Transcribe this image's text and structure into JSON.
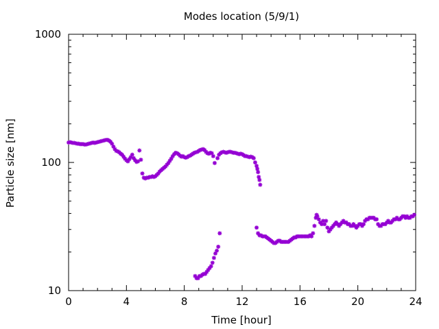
{
  "chart_data": {
    "type": "scatter",
    "title": "Modes location (5/9/1)",
    "xlabel": "Time [hour]",
    "ylabel": "Particle size [nm]",
    "xlim": [
      0,
      24
    ],
    "ylim": [
      10,
      1000
    ],
    "yscale": "log",
    "grid": false,
    "legend": "none",
    "xticks": [
      0,
      4,
      8,
      12,
      16,
      20,
      24
    ],
    "xtick_labels": [
      "0",
      "4",
      "8",
      "12",
      "16",
      "20",
      "24"
    ],
    "yticks": [
      10,
      100,
      1000
    ],
    "ytick_labels": [
      "10",
      "100",
      "1000"
    ],
    "marker_color": "#9400d3",
    "series": [
      {
        "points": [
          [
            0.0,
            143
          ],
          [
            0.1,
            144
          ],
          [
            0.2,
            143
          ],
          [
            0.3,
            142
          ],
          [
            0.4,
            142
          ],
          [
            0.5,
            141
          ],
          [
            0.6,
            140
          ],
          [
            0.7,
            140
          ],
          [
            0.8,
            139
          ],
          [
            0.9,
            139
          ],
          [
            1.0,
            139
          ],
          [
            1.1,
            138
          ],
          [
            1.2,
            138
          ],
          [
            1.3,
            139
          ],
          [
            1.4,
            140
          ],
          [
            1.5,
            141
          ],
          [
            1.6,
            142
          ],
          [
            1.7,
            143
          ],
          [
            1.8,
            142
          ],
          [
            1.9,
            143
          ],
          [
            2.0,
            144
          ],
          [
            2.1,
            145
          ],
          [
            2.2,
            146
          ],
          [
            2.3,
            147
          ],
          [
            2.4,
            148
          ],
          [
            2.5,
            149
          ],
          [
            2.6,
            150
          ],
          [
            2.7,
            150
          ],
          [
            2.8,
            148
          ],
          [
            2.9,
            145
          ],
          [
            3.0,
            140
          ],
          [
            3.1,
            133
          ],
          [
            3.2,
            127
          ],
          [
            3.3,
            123
          ],
          [
            3.4,
            122
          ],
          [
            3.5,
            120
          ],
          [
            3.6,
            117
          ],
          [
            3.7,
            115
          ],
          [
            3.8,
            111
          ],
          [
            3.9,
            107
          ],
          [
            4.0,
            104
          ],
          [
            4.1,
            102
          ],
          [
            4.2,
            106
          ],
          [
            4.3,
            110
          ],
          [
            4.4,
            115
          ],
          [
            4.5,
            108
          ],
          [
            4.6,
            104
          ],
          [
            4.7,
            101
          ],
          [
            4.8,
            102
          ],
          [
            4.9,
            124
          ],
          [
            5.0,
            105
          ],
          [
            5.1,
            82
          ],
          [
            5.2,
            76
          ],
          [
            5.3,
            75
          ],
          [
            5.4,
            76
          ],
          [
            5.5,
            76
          ],
          [
            5.6,
            77
          ],
          [
            5.7,
            77
          ],
          [
            5.8,
            78
          ],
          [
            5.9,
            77
          ],
          [
            6.0,
            78
          ],
          [
            6.1,
            80
          ],
          [
            6.2,
            82
          ],
          [
            6.3,
            85
          ],
          [
            6.4,
            87
          ],
          [
            6.5,
            89
          ],
          [
            6.6,
            91
          ],
          [
            6.7,
            93
          ],
          [
            6.8,
            96
          ],
          [
            6.9,
            99
          ],
          [
            7.0,
            103
          ],
          [
            7.1,
            107
          ],
          [
            7.2,
            112
          ],
          [
            7.3,
            116
          ],
          [
            7.4,
            119
          ],
          [
            7.5,
            118
          ],
          [
            7.6,
            116
          ],
          [
            7.7,
            113
          ],
          [
            7.8,
            111
          ],
          [
            7.9,
            112
          ],
          [
            8.0,
            110
          ],
          [
            8.1,
            109
          ],
          [
            8.2,
            110
          ],
          [
            8.3,
            112
          ],
          [
            8.4,
            113
          ],
          [
            8.5,
            115
          ],
          [
            8.6,
            117
          ],
          [
            8.7,
            119
          ],
          [
            8.8,
            120
          ],
          [
            8.9,
            121
          ],
          [
            9.0,
            123
          ],
          [
            9.1,
            125
          ],
          [
            9.2,
            126
          ],
          [
            9.3,
            127
          ],
          [
            9.4,
            125
          ],
          [
            9.5,
            121
          ],
          [
            9.6,
            118
          ],
          [
            9.7,
            117
          ],
          [
            9.8,
            119
          ],
          [
            9.9,
            118
          ],
          [
            10.0,
            112
          ],
          [
            10.1,
            99
          ],
          [
            10.3,
            108
          ],
          [
            10.4,
            115
          ],
          [
            10.5,
            118
          ],
          [
            10.6,
            120
          ],
          [
            10.7,
            121
          ],
          [
            10.8,
            120
          ],
          [
            10.9,
            119
          ],
          [
            11.0,
            120
          ],
          [
            11.1,
            121
          ],
          [
            11.2,
            121
          ],
          [
            11.3,
            120
          ],
          [
            11.4,
            119
          ],
          [
            11.5,
            119
          ],
          [
            11.6,
            118
          ],
          [
            11.7,
            117
          ],
          [
            11.8,
            116
          ],
          [
            11.9,
            117
          ],
          [
            12.0,
            116
          ],
          [
            12.1,
            114
          ],
          [
            12.2,
            112
          ],
          [
            12.3,
            112
          ],
          [
            12.4,
            111
          ],
          [
            12.5,
            110
          ],
          [
            12.6,
            111
          ],
          [
            12.7,
            110
          ],
          [
            12.8,
            108
          ],
          [
            12.9,
            100
          ],
          [
            13.0,
            94
          ],
          [
            13.05,
            89
          ],
          [
            13.1,
            84
          ],
          [
            13.15,
            77
          ],
          [
            13.2,
            73
          ],
          [
            13.25,
            67
          ],
          [
            13.0,
            31
          ],
          [
            13.1,
            28
          ],
          [
            13.2,
            27
          ],
          [
            13.3,
            27
          ],
          [
            13.4,
            26.5
          ],
          [
            13.5,
            26.5
          ],
          [
            13.6,
            26.5
          ],
          [
            13.7,
            26
          ],
          [
            13.8,
            25.5
          ],
          [
            13.9,
            25
          ],
          [
            14.0,
            24.5
          ],
          [
            14.1,
            24
          ],
          [
            14.2,
            23.5
          ],
          [
            14.3,
            23.5
          ],
          [
            14.4,
            24
          ],
          [
            14.5,
            24.5
          ],
          [
            14.6,
            24.5
          ],
          [
            14.7,
            24
          ],
          [
            14.8,
            24
          ],
          [
            14.9,
            24
          ],
          [
            15.0,
            24
          ],
          [
            15.1,
            24
          ],
          [
            15.2,
            24
          ],
          [
            15.3,
            24.5
          ],
          [
            15.4,
            25
          ],
          [
            15.5,
            25.5
          ],
          [
            15.6,
            26
          ],
          [
            15.7,
            26
          ],
          [
            15.8,
            26.5
          ],
          [
            15.9,
            26.5
          ],
          [
            16.0,
            26.5
          ],
          [
            16.1,
            26.5
          ],
          [
            16.2,
            26.5
          ],
          [
            16.3,
            26.5
          ],
          [
            16.4,
            26.5
          ],
          [
            16.5,
            26.5
          ],
          [
            16.6,
            26.5
          ],
          [
            16.7,
            27
          ],
          [
            16.8,
            26.5
          ],
          [
            16.9,
            28
          ],
          [
            17.0,
            32
          ],
          [
            17.1,
            37
          ],
          [
            17.15,
            39
          ],
          [
            17.2,
            38
          ],
          [
            17.3,
            36
          ],
          [
            17.4,
            34
          ],
          [
            17.5,
            33
          ],
          [
            17.6,
            35
          ],
          [
            17.7,
            33
          ],
          [
            17.8,
            35
          ],
          [
            17.9,
            31
          ],
          [
            18.0,
            29
          ],
          [
            18.1,
            30
          ],
          [
            18.2,
            31
          ],
          [
            18.3,
            32
          ],
          [
            18.4,
            33
          ],
          [
            18.5,
            34
          ],
          [
            18.6,
            33
          ],
          [
            18.7,
            32
          ],
          [
            18.8,
            33
          ],
          [
            18.9,
            34
          ],
          [
            19.0,
            35
          ],
          [
            19.1,
            34
          ],
          [
            19.2,
            34
          ],
          [
            19.3,
            33
          ],
          [
            19.4,
            33
          ],
          [
            19.5,
            32
          ],
          [
            19.6,
            32
          ],
          [
            19.7,
            33
          ],
          [
            19.8,
            32
          ],
          [
            19.9,
            31
          ],
          [
            20.0,
            32
          ],
          [
            20.1,
            33
          ],
          [
            20.2,
            33
          ],
          [
            20.3,
            32
          ],
          [
            20.4,
            33
          ],
          [
            20.5,
            35
          ],
          [
            20.6,
            36
          ],
          [
            20.7,
            36
          ],
          [
            20.8,
            37
          ],
          [
            20.9,
            37
          ],
          [
            21.0,
            37
          ],
          [
            21.1,
            37
          ],
          [
            21.2,
            36
          ],
          [
            21.3,
            36
          ],
          [
            21.4,
            33
          ],
          [
            21.5,
            32
          ],
          [
            21.6,
            32
          ],
          [
            21.7,
            33
          ],
          [
            21.8,
            33
          ],
          [
            21.9,
            33
          ],
          [
            22.0,
            34
          ],
          [
            22.1,
            35
          ],
          [
            22.2,
            34
          ],
          [
            22.3,
            34
          ],
          [
            22.4,
            35
          ],
          [
            22.5,
            36
          ],
          [
            22.6,
            36
          ],
          [
            22.7,
            37
          ],
          [
            22.8,
            36
          ],
          [
            22.9,
            36
          ],
          [
            23.0,
            37
          ],
          [
            23.1,
            38
          ],
          [
            23.2,
            38
          ],
          [
            23.3,
            37
          ],
          [
            23.4,
            38
          ],
          [
            23.5,
            37
          ],
          [
            23.6,
            37
          ],
          [
            23.7,
            38
          ],
          [
            23.8,
            38
          ],
          [
            23.9,
            39
          ],
          [
            8.75,
            13
          ],
          [
            8.85,
            12.5
          ],
          [
            8.95,
            12.5
          ],
          [
            9.05,
            13
          ],
          [
            9.15,
            13
          ],
          [
            9.25,
            13.3
          ],
          [
            9.35,
            13.5
          ],
          [
            9.45,
            13.5
          ],
          [
            9.55,
            14
          ],
          [
            9.65,
            14.5
          ],
          [
            9.75,
            15
          ],
          [
            9.85,
            15.5
          ],
          [
            9.95,
            16.5
          ],
          [
            10.05,
            18
          ],
          [
            10.15,
            19.5
          ],
          [
            10.25,
            20.5
          ],
          [
            10.35,
            22
          ],
          [
            10.45,
            28
          ]
        ]
      }
    ]
  }
}
